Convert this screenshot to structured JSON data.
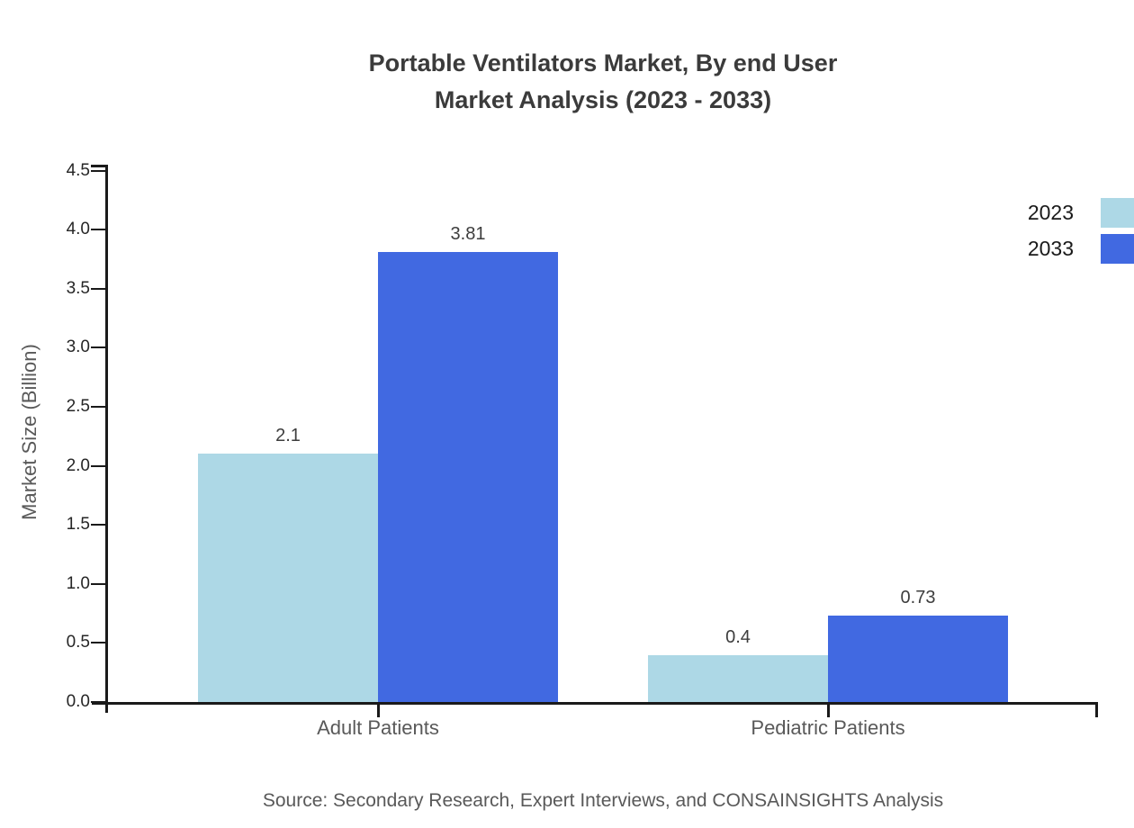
{
  "chart_data": {
    "type": "bar",
    "title": "Portable Ventilators Market, By end User\nMarket Analysis (2023 - 2033)",
    "categories": [
      "Adult Patients",
      "Pediatric Patients"
    ],
    "series": [
      {
        "name": "2023",
        "color": "#ADD8E6",
        "values": [
          2.1,
          0.4
        ],
        "labels": [
          "2.1",
          "0.4"
        ]
      },
      {
        "name": "2033",
        "color": "#4169E1",
        "values": [
          3.81,
          0.73
        ],
        "labels": [
          "3.81",
          "0.73"
        ]
      }
    ],
    "xlabel": "",
    "ylabel": "Market Size (Billion)",
    "ylim": [
      0,
      4.55
    ],
    "yticks": [
      0.0,
      0.5,
      1.0,
      1.5,
      2.0,
      2.5,
      3.0,
      3.5,
      4.0,
      4.5
    ],
    "ytick_labels": [
      "0.0",
      "0.5",
      "1.0",
      "1.5",
      "2.0",
      "2.5",
      "3.0",
      "3.5",
      "4.0",
      "4.5"
    ],
    "grid": false,
    "legend_position": "top-right"
  },
  "colors": {
    "series_2023": "#ADD8E6",
    "series_2033": "#4169E1",
    "axis": "#1a1a1a",
    "title_text": "#3b3b3b",
    "muted_text": "#595959"
  },
  "source": {
    "text": "Source: Secondary Research, Expert Interviews, and CONSAINSIGHTS Analysis"
  }
}
